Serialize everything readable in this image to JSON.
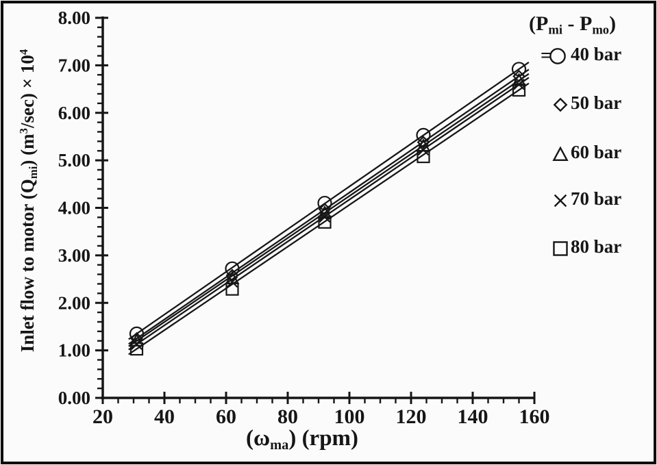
{
  "figure": {
    "background": "#fbfbfb",
    "ink": "#161616",
    "border_color": "#0d0d0d"
  },
  "chart_data": {
    "type": "scatter",
    "x": [
      31,
      62,
      92,
      124,
      155
    ],
    "series": [
      {
        "name": "40 bar",
        "marker": "circle",
        "values": [
          1.35,
          2.72,
          4.1,
          5.53,
          6.92
        ]
      },
      {
        "name": "50 bar",
        "marker": "diamond",
        "values": [
          1.25,
          2.58,
          3.97,
          5.38,
          6.77
        ]
      },
      {
        "name": "60 bar",
        "marker": "triangle",
        "values": [
          1.2,
          2.51,
          3.89,
          5.3,
          6.68
        ]
      },
      {
        "name": "70 bar",
        "marker": "cross",
        "values": [
          1.13,
          2.44,
          3.81,
          5.22,
          6.6
        ]
      },
      {
        "name": "80 bar",
        "marker": "square",
        "values": [
          1.03,
          2.29,
          3.7,
          5.08,
          6.48
        ]
      }
    ],
    "xlim": [
      20,
      160
    ],
    "ylim": [
      0,
      8
    ],
    "x_major_ticks": [
      20,
      40,
      60,
      80,
      100,
      120,
      140,
      160
    ],
    "x_minor_step": 5,
    "y_major_step": 1,
    "y_minor_step": 0.2,
    "y_tick_labels": [
      "0.00",
      "1.00",
      "2.00",
      "3.00",
      "4.00",
      "5.00",
      "6.00",
      "7.00",
      "8.00"
    ],
    "grid": false,
    "trendlines": true,
    "legend_position": "right-outside-top",
    "xlabel_parts": [
      {
        "t": "(ω"
      },
      {
        "t": "ma",
        "style": "sub"
      },
      {
        "t": ") (rpm)"
      }
    ],
    "ylabel_parts": [
      {
        "t": "Inlet flow to motor (Q"
      },
      {
        "t": "mi",
        "style": "sub"
      },
      {
        "t": ") (m"
      },
      {
        "t": "3",
        "style": "sup"
      },
      {
        "t": "/sec) × 10"
      },
      {
        "t": "4",
        "style": "sup"
      }
    ]
  },
  "legend": {
    "header_parts": [
      {
        "t": "(P"
      },
      {
        "t": "mi",
        "style": "sub"
      },
      {
        "t": " - P"
      },
      {
        "t": "mo",
        "style": "sub"
      },
      {
        "t": ")"
      }
    ],
    "equals_sign": "=",
    "items": [
      {
        "label": "40 bar",
        "marker": "circle"
      },
      {
        "label": "50 bar",
        "marker": "diamond"
      },
      {
        "label": "60 bar",
        "marker": "triangle"
      },
      {
        "label": "70 bar",
        "marker": "cross"
      },
      {
        "label": "80 bar",
        "marker": "square"
      }
    ]
  }
}
